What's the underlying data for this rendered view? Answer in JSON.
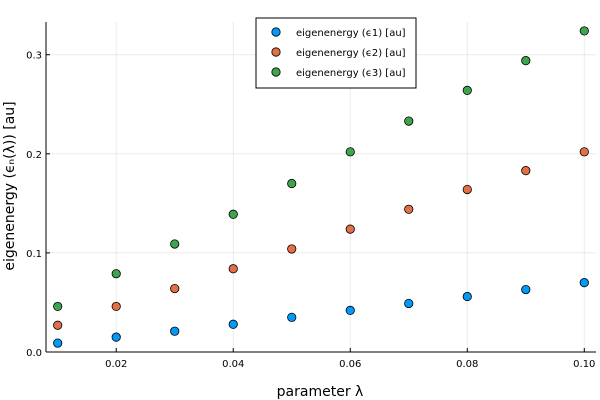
{
  "chart_data": {
    "type": "scatter",
    "title": "",
    "xlabel": "parameter λ",
    "ylabel": "eigenenergy (ϵₙ(λ)) [au]",
    "xlim": [
      0.008,
      0.102
    ],
    "ylim": [
      0.0,
      0.333
    ],
    "xticks": [
      0.02,
      0.04,
      0.06,
      0.08,
      0.1
    ],
    "xtick_labels": [
      "0.02",
      "0.04",
      "0.06",
      "0.08",
      "0.10"
    ],
    "yticks": [
      0.0,
      0.1,
      0.2,
      0.3
    ],
    "ytick_labels": [
      "0.0",
      "0.1",
      "0.2",
      "0.3"
    ],
    "grid": true,
    "legend_position": "top-right",
    "x": [
      0.01,
      0.02,
      0.03,
      0.04,
      0.05,
      0.06,
      0.07,
      0.08,
      0.09,
      0.1
    ],
    "series": [
      {
        "name": "eigenenergy (ϵ1) [au]",
        "color": "#009AFA",
        "values": [
          0.009,
          0.015,
          0.021,
          0.028,
          0.035,
          0.042,
          0.049,
          0.056,
          0.063,
          0.07
        ]
      },
      {
        "name": "eigenenergy (ϵ2) [au]",
        "color": "#E36F47",
        "values": [
          0.027,
          0.046,
          0.064,
          0.084,
          0.104,
          0.124,
          0.144,
          0.164,
          0.183,
          0.202
        ]
      },
      {
        "name": "eigenenergy (ϵ3) [au]",
        "color": "#3EA44E",
        "values": [
          0.046,
          0.079,
          0.109,
          0.139,
          0.17,
          0.202,
          0.233,
          0.264,
          0.294,
          0.324
        ]
      }
    ]
  }
}
